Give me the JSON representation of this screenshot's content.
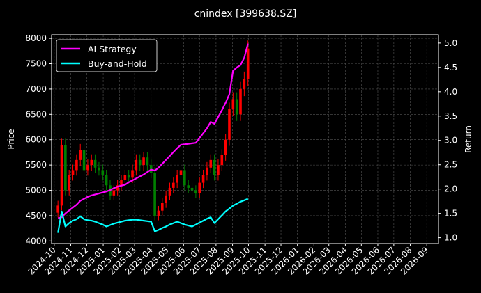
{
  "chart_data": {
    "type": "line",
    "title": "cnindex [399638.SZ]",
    "ylabel": "Price",
    "y2label": "Return",
    "ylim": [
      3950,
      8070
    ],
    "y2lim": [
      0.88,
      5.17
    ],
    "xlim": [
      "2024-09-26",
      "2026-09-23"
    ],
    "grid": true,
    "legend_position": "top-left",
    "colors": {
      "background": "#000000",
      "ai": "#ff00ff",
      "bh": "#00ffff",
      "up": "#ff0000",
      "down": "#008000",
      "grid": "#555555"
    },
    "y_ticks": [
      4000,
      4500,
      5000,
      5500,
      6000,
      6500,
      7000,
      7500,
      8000
    ],
    "y2_ticks": [
      1.0,
      1.5,
      2.0,
      2.5,
      3.0,
      3.5,
      4.0,
      4.5,
      5.0
    ],
    "x_ticks": [
      "2024-10",
      "2024-11",
      "2024-12",
      "2025-01",
      "2025-02",
      "2025-03",
      "2025-04",
      "2025-05",
      "2025-06",
      "2025-07",
      "2025-08",
      "2025-09",
      "2025-10",
      "2025-11",
      "2025-12",
      "2026-01",
      "2026-02",
      "2026-03",
      "2026-04",
      "2026-05",
      "2026-06",
      "2026-07",
      "2026-08",
      "2026-09"
    ],
    "dates": [
      "2024-10-08",
      "2024-10-15",
      "2024-10-22",
      "2024-10-29",
      "2024-11-05",
      "2024-11-12",
      "2024-11-19",
      "2024-11-26",
      "2024-12-03",
      "2024-12-10",
      "2024-12-17",
      "2024-12-24",
      "2024-12-31",
      "2025-01-07",
      "2025-01-14",
      "2025-01-21",
      "2025-01-28",
      "2025-02-04",
      "2025-02-11",
      "2025-02-18",
      "2025-02-25",
      "2025-03-04",
      "2025-03-11",
      "2025-03-18",
      "2025-03-25",
      "2025-04-01",
      "2025-04-08",
      "2025-04-15",
      "2025-04-22",
      "2025-04-29",
      "2025-05-06",
      "2025-05-13",
      "2025-05-20",
      "2025-05-27",
      "2025-06-03",
      "2025-06-10",
      "2025-06-17",
      "2025-06-24",
      "2025-07-01",
      "2025-07-08",
      "2025-07-15",
      "2025-07-22",
      "2025-07-29",
      "2025-08-05",
      "2025-08-12",
      "2025-08-19",
      "2025-08-26",
      "2025-09-02",
      "2025-09-09",
      "2025-09-16",
      "2025-09-23",
      "2025-09-30"
    ],
    "price_close": [
      4700,
      5900,
      5000,
      5300,
      5400,
      5600,
      5800,
      5400,
      5500,
      5600,
      5450,
      5400,
      5300,
      5100,
      4900,
      5000,
      5100,
      5200,
      5300,
      5250,
      5400,
      5600,
      5500,
      5650,
      5500,
      5350,
      4500,
      4600,
      4750,
      4900,
      5050,
      5150,
      5300,
      5400,
      5100,
      5050,
      5000,
      4950,
      5150,
      5300,
      5450,
      5600,
      5300,
      5500,
      5700,
      6000,
      6600,
      6800,
      6500,
      7000,
      7200,
      7800
    ],
    "series": [
      {
        "name": "AI Strategy",
        "axis": "right",
        "values": [
          1.4,
          1.42,
          1.5,
          1.56,
          1.62,
          1.68,
          1.76,
          1.8,
          1.84,
          1.87,
          1.89,
          1.91,
          1.93,
          1.95,
          1.98,
          2.02,
          2.05,
          2.07,
          2.09,
          2.14,
          2.18,
          2.22,
          2.26,
          2.3,
          2.35,
          2.4,
          2.38,
          2.44,
          2.52,
          2.6,
          2.68,
          2.76,
          2.84,
          2.91,
          2.92,
          2.93,
          2.94,
          2.95,
          3.05,
          3.15,
          3.25,
          3.38,
          3.34,
          3.48,
          3.62,
          3.77,
          3.95,
          4.43,
          4.5,
          4.55,
          4.7,
          4.99
        ]
      },
      {
        "name": "Buy-and-Hold",
        "axis": "right",
        "values": [
          1.1,
          1.54,
          1.23,
          1.3,
          1.35,
          1.38,
          1.44,
          1.38,
          1.36,
          1.35,
          1.33,
          1.3,
          1.27,
          1.23,
          1.26,
          1.29,
          1.31,
          1.33,
          1.35,
          1.36,
          1.37,
          1.37,
          1.36,
          1.35,
          1.34,
          1.33,
          1.13,
          1.16,
          1.2,
          1.23,
          1.27,
          1.3,
          1.33,
          1.3,
          1.27,
          1.25,
          1.23,
          1.27,
          1.31,
          1.35,
          1.39,
          1.42,
          1.3,
          1.38,
          1.46,
          1.54,
          1.6,
          1.66,
          1.7,
          1.74,
          1.77,
          1.8
        ]
      }
    ]
  }
}
